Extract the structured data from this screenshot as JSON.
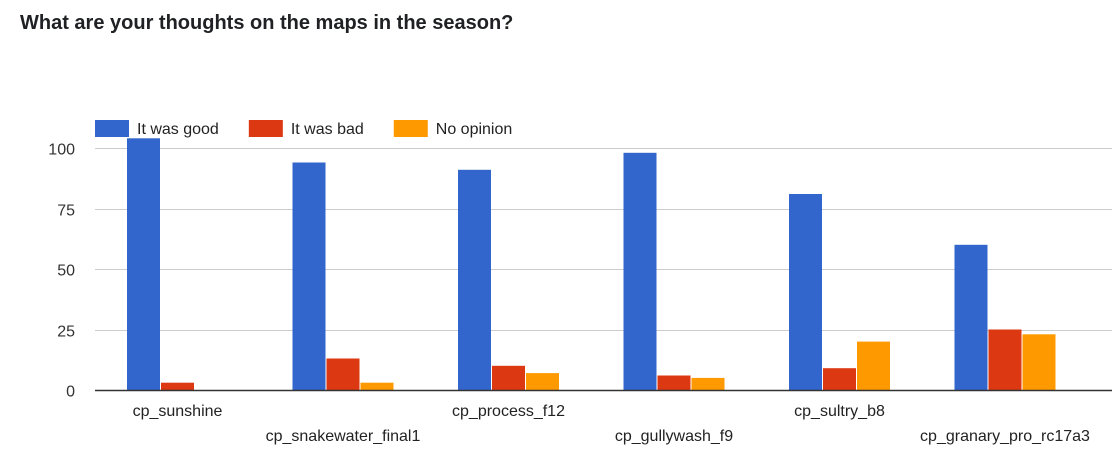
{
  "chart_data": {
    "type": "bar",
    "title": "What are your thoughts on the maps in the season?",
    "xlabel": "",
    "ylabel": "",
    "categories": [
      "cp_sunshine",
      "cp_snakewater_final1",
      "cp_process_f12",
      "cp_gullywash_f9",
      "cp_sultry_b8",
      "cp_granary_pro_rc17a3"
    ],
    "series": [
      {
        "name": "It was good",
        "color": "#3366cc",
        "values": [
          104,
          94,
          91,
          98,
          81,
          60
        ]
      },
      {
        "name": "It was bad",
        "color": "#dc3912",
        "values": [
          3,
          13,
          10,
          6,
          9,
          25
        ]
      },
      {
        "name": "No opinion",
        "color": "#ff9900",
        "values": [
          0,
          3,
          7,
          5,
          20,
          23
        ]
      }
    ],
    "yticks": [
      0,
      25,
      50,
      75,
      100
    ],
    "ylim": [
      0,
      100
    ],
    "grid": true,
    "legend_position": "top-left"
  }
}
